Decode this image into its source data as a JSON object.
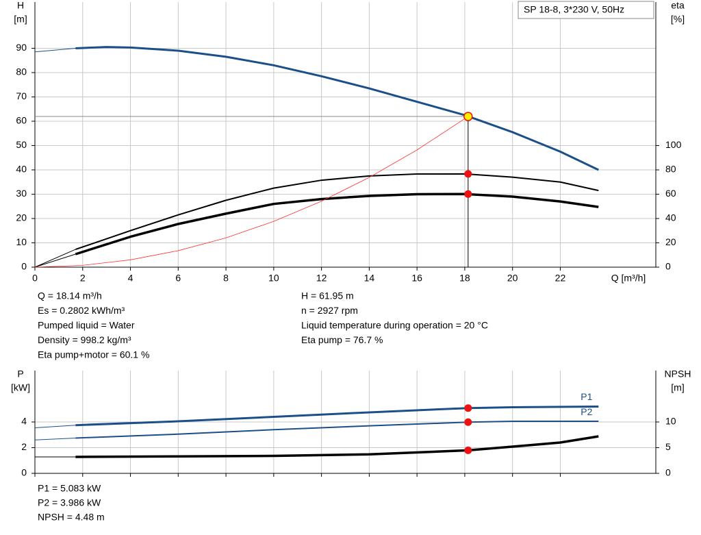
{
  "chart_data": [
    {
      "type": "line",
      "title": "SP 18-8, 3*230 V, 50Hz",
      "ylabel": "H",
      "yunit": "[m]",
      "y2label": "eta",
      "y2unit": "[%]",
      "xlabel": "Q [m³/h]",
      "xlim": [
        0,
        26
      ],
      "xticks": [
        0,
        2,
        4,
        6,
        8,
        10,
        12,
        14,
        16,
        18,
        20,
        22
      ],
      "ylim": [
        0,
        109
      ],
      "yticks": [
        0,
        10,
        20,
        30,
        40,
        50,
        60,
        70,
        80,
        90
      ],
      "y2lim": [
        0,
        218
      ],
      "y2ticks": [
        0,
        20,
        40,
        60,
        80,
        100
      ],
      "grid": true,
      "xtick_labels": true,
      "series": [
        {
          "color": "#1b4f8a",
          "width": 1,
          "x": [
            0,
            1.7
          ],
          "values": [
            88.5,
            90
          ]
        },
        {
          "color": "#1b4f8a",
          "width": 3,
          "x": [
            1.7,
            3,
            4,
            6,
            8,
            10,
            12,
            14,
            16,
            18,
            20,
            22,
            23.6
          ],
          "values": [
            90,
            90.5,
            90.3,
            89,
            86.5,
            83,
            78.5,
            73.5,
            68,
            62.5,
            55.5,
            47.5,
            40
          ]
        },
        {
          "color": "#000000",
          "width": 1,
          "axis": "y2",
          "x": [
            0,
            1.7
          ],
          "values": [
            0,
            14.6
          ]
        },
        {
          "color": "#000000",
          "width": 2,
          "axis": "y2",
          "x": [
            1.7,
            4,
            6,
            8,
            10,
            12,
            14,
            16,
            18,
            20,
            22,
            23.6
          ],
          "values": [
            14.6,
            30,
            43,
            55,
            65,
            71.5,
            75,
            76.6,
            76.7,
            74,
            70,
            63
          ]
        },
        {
          "color": "#000000",
          "width": 1,
          "axis": "y2",
          "x": [
            0,
            1.7
          ],
          "values": [
            0,
            10.7
          ]
        },
        {
          "color": "#000000",
          "width": 3.5,
          "axis": "y2",
          "x": [
            1.7,
            4,
            6,
            8,
            10,
            12,
            14,
            16,
            18,
            20,
            22,
            23.6
          ],
          "values": [
            10.7,
            25,
            35.5,
            44,
            52,
            56,
            58.6,
            60,
            60.1,
            58,
            54,
            49.5
          ]
        },
        {
          "color": "#ff3030",
          "width": 0.8,
          "x": [
            0,
            2,
            4,
            6,
            8,
            10,
            12,
            14,
            16,
            18.14
          ],
          "values": [
            0,
            0.75,
            3.01,
            6.78,
            12.05,
            18.83,
            27.11,
            36.9,
            48.2,
            61.95
          ]
        }
      ],
      "guide_x": 18.14,
      "guide_y": 61.95,
      "markers": [
        {
          "x": 18.14,
          "y": 61.95,
          "color": "#ffee00"
        },
        {
          "x": 18.14,
          "y": 76.7,
          "axis": "y2",
          "color": "#ee1111"
        },
        {
          "x": 18.14,
          "y": 60.1,
          "axis": "y2",
          "color": "#ee1111"
        }
      ]
    },
    {
      "type": "line",
      "ylabel": "P",
      "yunit": "[kW]",
      "y2label": "NPSH",
      "y2unit": "[m]",
      "xlim": [
        0,
        26
      ],
      "xticks": [
        0,
        2,
        4,
        6,
        8,
        10,
        12,
        14,
        16,
        18,
        20,
        22
      ],
      "ylim": [
        0,
        8
      ],
      "yticks": [
        0,
        2,
        4
      ],
      "y2lim": [
        0,
        20
      ],
      "y2ticks": [
        0,
        5,
        10
      ],
      "grid": true,
      "xtick_labels": false,
      "series": [
        {
          "color": "#1b4f8a",
          "width": 1,
          "x": [
            0,
            1.7
          ],
          "values": [
            3.55,
            3.75
          ]
        },
        {
          "name": "P1",
          "color": "#1b4f8a",
          "width": 3,
          "x": [
            1.7,
            6,
            10,
            14,
            18.14,
            20,
            23.6
          ],
          "values": [
            3.75,
            4.05,
            4.4,
            4.75,
            5.083,
            5.15,
            5.2
          ]
        },
        {
          "color": "#1b4f8a",
          "width": 1,
          "x": [
            0,
            1.7
          ],
          "values": [
            2.6,
            2.75
          ]
        },
        {
          "name": "P2",
          "color": "#1b4f8a",
          "width": 2,
          "x": [
            1.7,
            6,
            10,
            14,
            18.14,
            20,
            23.6
          ],
          "values": [
            2.75,
            3.05,
            3.4,
            3.7,
            3.986,
            4.05,
            4.05
          ]
        },
        {
          "color": "#000000",
          "width": 1,
          "axis": "y2",
          "x": [
            0,
            1.7
          ],
          "values": [
            3.2,
            3.2
          ]
        },
        {
          "color": "#000000",
          "width": 3.5,
          "axis": "y2",
          "x": [
            1.7,
            6,
            10,
            14,
            18.14,
            20,
            22,
            23.6
          ],
          "values": [
            3.2,
            3.3,
            3.4,
            3.7,
            4.48,
            5.2,
            6.0,
            7.2
          ]
        }
      ],
      "markers": [
        {
          "x": 18.14,
          "y": 5.083,
          "color": "#ee1111"
        },
        {
          "x": 18.14,
          "y": 3.986,
          "color": "#ee1111"
        },
        {
          "x": 18.14,
          "y": 4.48,
          "axis": "y2",
          "color": "#ee1111"
        }
      ]
    }
  ],
  "info_left": [
    "Q = 18.14 m³/h",
    "Es = 0.2802 kWh/m³",
    "Pumped liquid = Water",
    "Density = 998.2 kg/m³",
    "Eta pump+motor = 60.1 %"
  ],
  "info_right": [
    "H = 61.95 m",
    "n = 2927 rpm",
    "Liquid temperature during operation = 20 °C",
    "Eta pump = 76.7 %"
  ],
  "info_power": [
    "P1 = 5.083 kW",
    "P2 = 3.986 kW",
    "NPSH = 4.48 m"
  ]
}
